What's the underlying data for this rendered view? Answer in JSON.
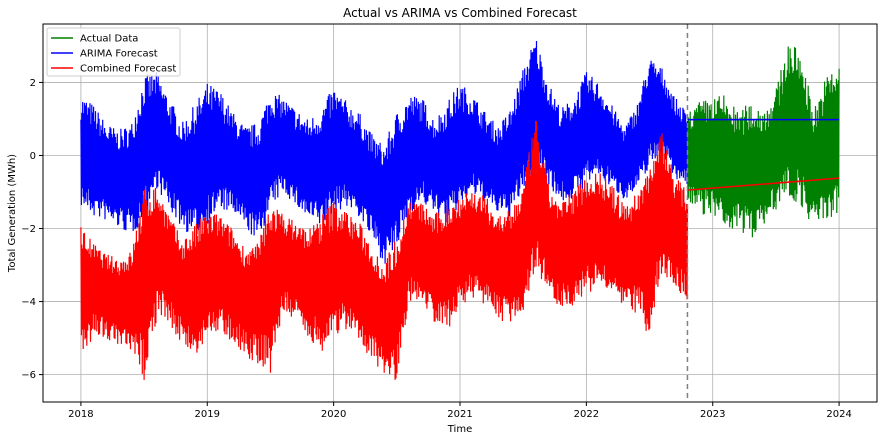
{
  "chart_data": {
    "type": "line",
    "title": "Actual vs ARIMA vs Combined Forecast",
    "xlabel": "Time",
    "ylabel": "Total Generation (MWh)",
    "xlim": [
      2017.7,
      2024.3
    ],
    "ylim": [
      -6.75,
      3.6
    ],
    "x_ticks": [
      2018,
      2019,
      2020,
      2021,
      2022,
      2023,
      2024
    ],
    "x_tick_labels": [
      "2018",
      "2019",
      "2020",
      "2021",
      "2022",
      "2023",
      "2024"
    ],
    "y_ticks": [
      -6,
      -4,
      -2,
      0,
      2
    ],
    "y_tick_labels": [
      "−6",
      "−4",
      "−2",
      "0",
      "2"
    ],
    "grid": true,
    "legend_position": "top-left",
    "vline": {
      "x": 2022.8,
      "style": "dashed",
      "color": "#808080"
    },
    "series": [
      {
        "name": "Actual Data",
        "color": "#008000",
        "x": [
          2022.8,
          2022.9,
          2023.0,
          2023.1,
          2023.2,
          2023.3,
          2023.4,
          2023.5,
          2023.6,
          2023.7,
          2023.8,
          2023.9,
          2024.0
        ],
        "high": [
          1.2,
          1.5,
          1.6,
          1.7,
          1.2,
          1.5,
          1.3,
          1.8,
          3.2,
          2.8,
          1.3,
          2.2,
          2.6
        ],
        "low": [
          -1.5,
          -1.6,
          -1.7,
          -2.1,
          -2.0,
          -2.3,
          -1.9,
          -1.5,
          -1.2,
          -1.4,
          -2.0,
          -1.8,
          -1.7
        ],
        "mid": [
          0.0,
          0.0,
          0.0,
          -0.3,
          -0.4,
          -0.4,
          -0.3,
          0.1,
          0.9,
          0.8,
          -0.4,
          0.2,
          0.4
        ]
      },
      {
        "name": "ARIMA Forecast",
        "color": "#0000ff",
        "x": [
          2018.0,
          2018.1,
          2018.2,
          2018.3,
          2018.4,
          2018.5,
          2018.6,
          2018.7,
          2018.8,
          2018.9,
          2019.0,
          2019.1,
          2019.2,
          2019.3,
          2019.4,
          2019.5,
          2019.6,
          2019.7,
          2019.8,
          2019.9,
          2020.0,
          2020.1,
          2020.2,
          2020.3,
          2020.4,
          2020.5,
          2020.6,
          2020.7,
          2020.8,
          2020.9,
          2021.0,
          2021.1,
          2021.2,
          2021.3,
          2021.4,
          2021.5,
          2021.6,
          2021.7,
          2021.8,
          2021.9,
          2022.0,
          2022.1,
          2022.2,
          2022.3,
          2022.4,
          2022.5,
          2022.6,
          2022.7,
          2022.8
        ],
        "high": [
          1.7,
          1.4,
          0.9,
          0.7,
          0.9,
          2.2,
          2.3,
          1.6,
          0.9,
          1.4,
          2.0,
          1.8,
          1.2,
          0.8,
          0.9,
          1.8,
          1.6,
          1.3,
          1.0,
          1.3,
          1.9,
          1.5,
          1.2,
          0.6,
          0.3,
          1.2,
          1.7,
          1.6,
          1.0,
          1.5,
          2.0,
          1.7,
          1.2,
          0.8,
          1.3,
          2.4,
          3.3,
          2.0,
          1.3,
          1.6,
          2.3,
          2.0,
          1.4,
          0.8,
          1.4,
          2.7,
          2.4,
          1.6,
          1.2
        ],
        "low": [
          -1.4,
          -1.7,
          -1.8,
          -2.0,
          -2.2,
          -1.8,
          -0.9,
          -1.5,
          -2.0,
          -2.3,
          -1.9,
          -1.5,
          -1.6,
          -2.0,
          -2.4,
          -1.5,
          -1.0,
          -1.4,
          -1.8,
          -2.0,
          -1.6,
          -1.4,
          -1.7,
          -2.3,
          -3.0,
          -2.6,
          -1.6,
          -1.3,
          -1.6,
          -1.9,
          -1.4,
          -1.1,
          -1.3,
          -1.6,
          -1.7,
          -1.0,
          -0.2,
          -0.8,
          -1.3,
          -1.2,
          -0.8,
          -0.6,
          -0.9,
          -1.2,
          -1.0,
          -0.3,
          0.0,
          -0.6,
          -0.9
        ],
        "mid": [
          0.1,
          -0.1,
          -0.5,
          -0.6,
          -0.6,
          0.2,
          0.7,
          0.0,
          -0.5,
          -0.4,
          0.0,
          0.1,
          -0.2,
          -0.6,
          -0.7,
          0.1,
          0.3,
          -0.1,
          -0.4,
          -0.3,
          0.1,
          0.0,
          -0.2,
          -0.8,
          -1.3,
          -0.7,
          0.0,
          0.1,
          -0.3,
          -0.2,
          0.3,
          0.3,
          -0.1,
          -0.4,
          -0.2,
          0.7,
          1.5,
          0.6,
          0.0,
          0.2,
          0.7,
          0.7,
          0.2,
          -0.2,
          0.2,
          1.2,
          1.2,
          0.5,
          0.1
        ],
        "forecast_x": [
          2022.8,
          2024.0
        ],
        "forecast_y": [
          0.98,
          0.98
        ]
      },
      {
        "name": "Combined Forecast",
        "color": "#ff0000",
        "x": [
          2018.0,
          2018.1,
          2018.2,
          2018.3,
          2018.4,
          2018.5,
          2018.6,
          2018.7,
          2018.8,
          2018.9,
          2019.0,
          2019.1,
          2019.2,
          2019.3,
          2019.4,
          2019.5,
          2019.6,
          2019.7,
          2019.8,
          2019.9,
          2020.0,
          2020.1,
          2020.2,
          2020.3,
          2020.4,
          2020.5,
          2020.6,
          2020.7,
          2020.8,
          2020.9,
          2021.0,
          2021.1,
          2021.2,
          2021.3,
          2021.4,
          2021.5,
          2021.6,
          2021.7,
          2021.8,
          2021.9,
          2022.0,
          2022.1,
          2022.2,
          2022.3,
          2022.4,
          2022.5,
          2022.6,
          2022.7,
          2022.8
        ],
        "high": [
          -1.9,
          -2.4,
          -2.7,
          -2.8,
          -2.6,
          -0.9,
          -0.8,
          -1.6,
          -2.3,
          -1.9,
          -1.5,
          -1.6,
          -2.0,
          -2.5,
          -2.4,
          -1.2,
          -1.6,
          -1.8,
          -2.0,
          -1.6,
          -1.2,
          -1.5,
          -1.8,
          -2.4,
          -2.9,
          -2.2,
          -1.2,
          -1.3,
          -1.6,
          -1.3,
          -1.0,
          -0.9,
          -1.1,
          -1.6,
          -1.5,
          -0.8,
          1.1,
          -0.8,
          -1.3,
          -0.9,
          -0.5,
          -0.4,
          -0.8,
          -1.3,
          -1.0,
          -0.2,
          0.7,
          -0.5,
          -1.0
        ],
        "low": [
          -5.8,
          -4.9,
          -5.0,
          -5.3,
          -5.5,
          -6.2,
          -4.5,
          -4.6,
          -5.2,
          -5.6,
          -5.0,
          -4.9,
          -5.1,
          -5.5,
          -5.7,
          -6.0,
          -4.3,
          -4.6,
          -5.0,
          -5.4,
          -5.0,
          -4.8,
          -5.1,
          -5.6,
          -6.0,
          -6.2,
          -4.0,
          -4.0,
          -4.6,
          -4.8,
          -4.2,
          -3.9,
          -4.1,
          -4.5,
          -4.6,
          -4.3,
          -3.1,
          -3.8,
          -4.2,
          -4.1,
          -3.8,
          -3.6,
          -3.9,
          -4.3,
          -4.3,
          -5.1,
          -3.2,
          -3.6,
          -4.0
        ],
        "mid": [
          -3.6,
          -3.5,
          -3.7,
          -3.9,
          -3.9,
          -3.2,
          -2.4,
          -3.0,
          -3.6,
          -3.6,
          -3.2,
          -3.1,
          -3.4,
          -3.8,
          -4.0,
          -3.3,
          -2.8,
          -3.1,
          -3.4,
          -3.4,
          -3.1,
          -3.0,
          -3.3,
          -3.9,
          -4.5,
          -4.0,
          -2.5,
          -2.5,
          -3.1,
          -3.0,
          -2.6,
          -2.3,
          -2.6,
          -3.0,
          -3.0,
          -2.4,
          -1.0,
          -2.2,
          -2.7,
          -2.5,
          -2.1,
          -2.0,
          -2.3,
          -2.8,
          -2.6,
          -2.0,
          -1.1,
          -2.0,
          -2.4
        ],
        "forecast_x": [
          2022.8,
          2024.0
        ],
        "forecast_y": [
          -0.95,
          -0.62
        ]
      }
    ]
  }
}
